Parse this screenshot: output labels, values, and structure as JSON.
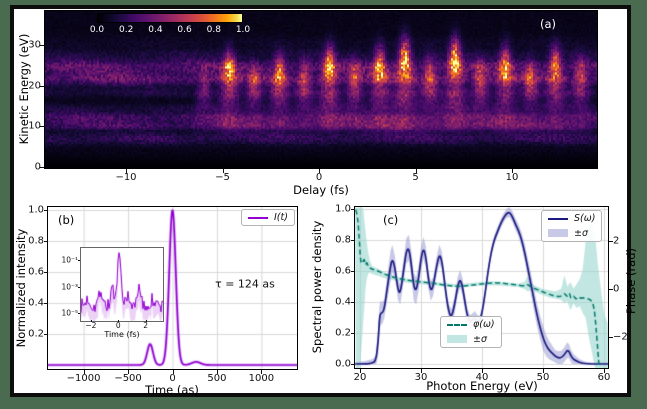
{
  "figure": {
    "border_color": "#4a6b4f",
    "frame_color": "#0d0d0d",
    "background": "#ffffff"
  },
  "colors": {
    "purple": "#9400d3",
    "purple_glow": "rgba(190,140,230,0.4)",
    "navy": "#1b1b80",
    "teal": "#00796b",
    "teal_band": "rgba(153,213,205,0.6)",
    "lavender_band": "rgba(155,155,212,0.55)",
    "grid": "#d8d8d8"
  },
  "chart_data": [
    {
      "type": "heatmap",
      "label": "(a)",
      "xlabel": "Delay (fs)",
      "ylabel": "Kinetic Energy (eV)",
      "x_ticks": [
        "−10",
        "−5",
        "0",
        "5",
        "10"
      ],
      "x_tick_values": [
        -10,
        -5,
        0,
        5,
        10
      ],
      "y_ticks": [
        "0",
        "10",
        "20",
        "30"
      ],
      "y_tick_values": [
        0,
        10,
        20,
        30
      ],
      "xlim": [
        -14.2,
        14.4
      ],
      "ylim": [
        0,
        38.4
      ],
      "colorbar": {
        "ticks": [
          "0.0",
          "0.2",
          "0.4",
          "0.6",
          "0.8",
          "1.0"
        ],
        "tick_values": [
          0.0,
          0.2,
          0.4,
          0.6,
          0.8,
          1.0
        ],
        "colormap": "inferno",
        "stops": [
          [
            0,
            "#000004"
          ],
          [
            0.13,
            "#160b39"
          ],
          [
            0.25,
            "#420a68"
          ],
          [
            0.38,
            "#6a176e"
          ],
          [
            0.5,
            "#932667"
          ],
          [
            0.62,
            "#bc3754"
          ],
          [
            0.73,
            "#dd513a"
          ],
          [
            0.82,
            "#f37819"
          ],
          [
            0.9,
            "#fca50a"
          ],
          [
            0.96,
            "#f6d746"
          ],
          [
            1,
            "#fcffa4"
          ]
        ]
      },
      "heatmap_model": {
        "stripes_ev": [
          [
            7,
            1.5,
            0.22
          ],
          [
            10.3,
            1.2,
            0.3
          ],
          [
            12.4,
            1.2,
            0.3
          ],
          [
            14.6,
            1.1,
            0.12
          ],
          [
            18.5,
            1.2,
            0.14
          ],
          [
            21.8,
            1.6,
            0.42
          ],
          [
            24.8,
            1.7,
            0.4
          ],
          [
            27.8,
            1.6,
            0.12
          ],
          [
            30.8,
            1.5,
            0.05
          ]
        ],
        "sidebands": [
          [
            -6.0,
            0.3,
            24
          ],
          [
            -4.7,
            0.8,
            29
          ],
          [
            -3.4,
            0.45,
            25
          ],
          [
            -2.1,
            0.7,
            28
          ],
          [
            -0.8,
            0.5,
            26
          ],
          [
            0.5,
            0.9,
            30
          ],
          [
            1.8,
            0.5,
            26
          ],
          [
            3.1,
            0.8,
            30
          ],
          [
            4.4,
            1.05,
            32
          ],
          [
            5.7,
            0.55,
            27
          ],
          [
            7.0,
            1.0,
            32
          ],
          [
            8.3,
            0.5,
            26
          ],
          [
            9.6,
            0.8,
            30
          ],
          [
            10.9,
            0.5,
            26
          ],
          [
            12.2,
            0.75,
            30
          ],
          [
            13.5,
            0.5,
            27
          ]
        ],
        "noise_seed": 42
      }
    },
    {
      "type": "line",
      "label": "(b)",
      "xlabel": "Time (as)",
      "ylabel": "Normalized intensity",
      "x_ticks": [
        "−1000",
        "−500",
        "0",
        "500",
        "1000"
      ],
      "x_tick_values": [
        -1000,
        -500,
        0,
        500,
        1000
      ],
      "y_ticks": [
        "0.2",
        "0.4",
        "0.6",
        "0.8",
        "1.0"
      ],
      "y_tick_values": [
        0.2,
        0.4,
        0.6,
        0.8,
        1.0
      ],
      "xlim": [
        -1400,
        1400
      ],
      "ylim": [
        0,
        1.0
      ],
      "legend_label": "I(t)",
      "annotation": "τ = 124 as",
      "curve_peaks": [
        {
          "t": 0,
          "amp": 1.0,
          "sig": 52
        },
        {
          "t": -252,
          "amp": 0.135,
          "sig": 46
        },
        {
          "t": 265,
          "amp": 0.02,
          "sig": 70
        }
      ],
      "inset": {
        "xlabel": "Time (fs)",
        "x_ticks": [
          "−2",
          "0",
          "2"
        ],
        "x_tick_values": [
          -2,
          0,
          2
        ],
        "y_ticks": [
          "10⁻¹",
          "10⁻³",
          "10⁻⁵"
        ],
        "y_tick_logs": [
          -1,
          -3,
          -5
        ],
        "xlim": [
          -2.8,
          3.2
        ],
        "ylim_log": [
          -5.5,
          0
        ],
        "noise_floor_log": -4.35,
        "noise_amp_log": 0.55,
        "peaks": [
          {
            "t": 0,
            "amp": 3.95,
            "sig": 0.17
          },
          {
            "t": -0.5,
            "amp": 1.5,
            "sig": 0.16
          },
          {
            "t": -1.35,
            "amp": 1.1,
            "sig": 0.22
          },
          {
            "t": 1.4,
            "amp": 1.3,
            "sig": 0.2
          },
          {
            "t": 0.55,
            "amp": 0.9,
            "sig": 0.14
          },
          {
            "t": -2.3,
            "amp": 0.5,
            "sig": 0.2
          },
          {
            "t": 2.4,
            "amp": 0.4,
            "sig": 0.2
          }
        ],
        "seed": 7
      }
    },
    {
      "type": "line",
      "label": "(c)",
      "xlabel": "Photon Energy (eV)",
      "ylabel": "Spectral power density",
      "ylabel_right": "Phase (rad)",
      "x_ticks": [
        "20",
        "30",
        "40",
        "50",
        "60"
      ],
      "x_tick_values": [
        20,
        30,
        40,
        50,
        60
      ],
      "y_ticks": [
        "0.0",
        "0.2",
        "0.4",
        "0.6",
        "0.8",
        "1.0"
      ],
      "y_tick_values": [
        0.0,
        0.2,
        0.4,
        0.6,
        0.8,
        1.0
      ],
      "right_ticks": [
        "2",
        "0",
        "−2"
      ],
      "right_tick_values": [
        2,
        0,
        -2
      ],
      "xlim": [
        19.2,
        60.7
      ],
      "ylim": [
        0,
        1.0
      ],
      "ylim_phase": [
        -3.3,
        3.4
      ],
      "legend1": {
        "line": "S(ω)",
        "band": "±σ"
      },
      "legend2": {
        "line": "φ(ω)",
        "band": "±σ"
      },
      "spectrum": [
        [
          19.2,
          0.0
        ],
        [
          21,
          0.0
        ],
        [
          22,
          0.005
        ],
        [
          22.6,
          0.02
        ],
        [
          23,
          0.15
        ],
        [
          23.2,
          0.3
        ],
        [
          23.4,
          0.33
        ],
        [
          23.7,
          0.33
        ],
        [
          24,
          0.36
        ],
        [
          24.5,
          0.5
        ],
        [
          25,
          0.63
        ],
        [
          25.3,
          0.68
        ],
        [
          25.7,
          0.63
        ],
        [
          26.2,
          0.48
        ],
        [
          26.6,
          0.45
        ],
        [
          27.2,
          0.62
        ],
        [
          27.6,
          0.73
        ],
        [
          28,
          0.75
        ],
        [
          28.4,
          0.65
        ],
        [
          28.8,
          0.5
        ],
        [
          29.2,
          0.47
        ],
        [
          29.6,
          0.55
        ],
        [
          30,
          0.68
        ],
        [
          30.4,
          0.75
        ],
        [
          30.8,
          0.69
        ],
        [
          31.2,
          0.55
        ],
        [
          31.6,
          0.47
        ],
        [
          32,
          0.5
        ],
        [
          32.5,
          0.62
        ],
        [
          33,
          0.71
        ],
        [
          33.4,
          0.67
        ],
        [
          33.8,
          0.55
        ],
        [
          34.2,
          0.42
        ],
        [
          34.6,
          0.33
        ],
        [
          35,
          0.3
        ],
        [
          35.5,
          0.38
        ],
        [
          36,
          0.5
        ],
        [
          36.4,
          0.55
        ],
        [
          36.8,
          0.5
        ],
        [
          37.2,
          0.4
        ],
        [
          37.6,
          0.31
        ],
        [
          38,
          0.27
        ],
        [
          38.4,
          0.28
        ],
        [
          38.8,
          0.3
        ],
        [
          39.2,
          0.28
        ],
        [
          39.6,
          0.27
        ],
        [
          40,
          0.33
        ],
        [
          40.5,
          0.45
        ],
        [
          41,
          0.6
        ],
        [
          41.5,
          0.72
        ],
        [
          42,
          0.8
        ],
        [
          42.5,
          0.85
        ],
        [
          43,
          0.9
        ],
        [
          43.5,
          0.94
        ],
        [
          44,
          0.97
        ],
        [
          44.5,
          0.98
        ],
        [
          45,
          0.95
        ],
        [
          45.5,
          0.9
        ],
        [
          46,
          0.86
        ],
        [
          46.5,
          0.8
        ],
        [
          47,
          0.72
        ],
        [
          47.5,
          0.62
        ],
        [
          48,
          0.52
        ],
        [
          48.5,
          0.42
        ],
        [
          49,
          0.32
        ],
        [
          49.5,
          0.24
        ],
        [
          50,
          0.17
        ],
        [
          50.5,
          0.12
        ],
        [
          51,
          0.09
        ],
        [
          51.5,
          0.07
        ],
        [
          52,
          0.05
        ],
        [
          52.5,
          0.04
        ],
        [
          53,
          0.04
        ],
        [
          53.5,
          0.06
        ],
        [
          54,
          0.09
        ],
        [
          54.3,
          0.08
        ],
        [
          54.6,
          0.05
        ],
        [
          55,
          0.03
        ],
        [
          55.5,
          0.02
        ],
        [
          56,
          0.01
        ],
        [
          57,
          0.0
        ],
        [
          60.7,
          0.0
        ]
      ],
      "spectrum_sigma": [
        [
          19.2,
          0.01
        ],
        [
          22.5,
          0.03
        ],
        [
          23,
          0.09
        ],
        [
          24,
          0.06
        ],
        [
          25,
          0.1
        ],
        [
          26,
          0.06
        ],
        [
          27.5,
          0.08
        ],
        [
          29,
          0.09
        ],
        [
          30.5,
          0.07
        ],
        [
          32,
          0.06
        ],
        [
          33,
          0.06
        ],
        [
          34.5,
          0.05
        ],
        [
          36,
          0.06
        ],
        [
          37.5,
          0.05
        ],
        [
          39,
          0.04
        ],
        [
          41,
          0.03
        ],
        [
          44,
          0.03
        ],
        [
          46,
          0.04
        ],
        [
          48,
          0.07
        ],
        [
          50,
          0.08
        ],
        [
          52,
          0.04
        ],
        [
          54,
          0.05
        ],
        [
          56,
          0.02
        ],
        [
          58,
          0.01
        ],
        [
          60.7,
          0.01
        ]
      ],
      "phase": [
        [
          19.3,
          3.3
        ],
        [
          19.6,
          3.1
        ],
        [
          19.9,
          2.0
        ],
        [
          20.1,
          1.1
        ],
        [
          20.4,
          1.05
        ],
        [
          20.7,
          1.3
        ],
        [
          20.9,
          0.95
        ],
        [
          21.1,
          1.15
        ],
        [
          21.4,
          0.9
        ],
        [
          21.8,
          0.85
        ],
        [
          22.3,
          0.8
        ],
        [
          23,
          0.74
        ],
        [
          24,
          0.62
        ],
        [
          25,
          0.53
        ],
        [
          26,
          0.45
        ],
        [
          27,
          0.4
        ],
        [
          28,
          0.36
        ],
        [
          29,
          0.33
        ],
        [
          30,
          0.3
        ],
        [
          31,
          0.27
        ],
        [
          32,
          0.24
        ],
        [
          33,
          0.2
        ],
        [
          34,
          0.16
        ],
        [
          35,
          0.13
        ],
        [
          36,
          0.11
        ],
        [
          37,
          0.12
        ],
        [
          38,
          0.15
        ],
        [
          39,
          0.18
        ],
        [
          40,
          0.21
        ],
        [
          41,
          0.24
        ],
        [
          42,
          0.26
        ],
        [
          43,
          0.25
        ],
        [
          44,
          0.22
        ],
        [
          45,
          0.19
        ],
        [
          46,
          0.16
        ],
        [
          47,
          0.12
        ],
        [
          47.5,
          0.2
        ],
        [
          48,
          0.08
        ],
        [
          49,
          -0.02
        ],
        [
          50,
          -0.12
        ],
        [
          51,
          -0.22
        ],
        [
          52,
          -0.3
        ],
        [
          53,
          -0.32
        ],
        [
          53.5,
          -0.15
        ],
        [
          54,
          -0.35
        ],
        [
          54.3,
          -0.1
        ],
        [
          54.6,
          -0.45
        ],
        [
          55,
          -0.25
        ],
        [
          55.4,
          -0.45
        ],
        [
          55.8,
          -0.3
        ],
        [
          56.2,
          -0.4
        ],
        [
          56.6,
          -0.35
        ],
        [
          57,
          -0.45
        ],
        [
          57.5,
          -0.4
        ],
        [
          58,
          -0.5
        ],
        [
          58.4,
          -0.8
        ],
        [
          58.7,
          -1.6
        ],
        [
          59,
          -2.6
        ],
        [
          59.2,
          -3.3
        ]
      ],
      "phase_sigma_band": [
        [
          19.3,
          -3.3,
          3.4
        ],
        [
          20,
          -3.3,
          3.4
        ],
        [
          20.5,
          -1.5,
          3.4
        ],
        [
          21,
          0.3,
          2.2
        ],
        [
          21.3,
          0.6,
          1.6
        ],
        [
          21.6,
          0.7,
          1.2
        ],
        [
          22,
          0.62,
          0.95
        ],
        [
          23,
          0.55,
          0.85
        ],
        [
          24,
          0.45,
          0.7
        ],
        [
          25,
          0.4,
          0.62
        ],
        [
          26,
          0.33,
          0.52
        ],
        [
          28,
          0.25,
          0.42
        ],
        [
          30,
          0.2,
          0.36
        ],
        [
          32,
          0.15,
          0.3
        ],
        [
          34,
          0.1,
          0.25
        ],
        [
          36,
          0.07,
          0.2
        ],
        [
          38,
          0.1,
          0.25
        ],
        [
          40,
          0.15,
          0.3
        ],
        [
          42,
          0.15,
          0.32
        ],
        [
          44,
          0.12,
          0.28
        ],
        [
          46,
          0.08,
          0.22
        ],
        [
          47,
          0.0,
          0.3
        ],
        [
          47.5,
          -0.1,
          0.55
        ],
        [
          48,
          -0.05,
          0.25
        ],
        [
          49,
          -0.15,
          0.1
        ],
        [
          50,
          -0.25,
          0.0
        ],
        [
          51,
          -0.35,
          -0.05
        ],
        [
          52,
          -0.4,
          -0.1
        ],
        [
          53,
          -0.45,
          0.0
        ],
        [
          53.5,
          -0.6,
          0.6
        ],
        [
          54,
          -0.5,
          0.1
        ],
        [
          54.5,
          -0.9,
          0.3
        ],
        [
          55,
          -0.6,
          0.0
        ],
        [
          55.5,
          -0.8,
          0.2
        ],
        [
          56,
          -0.7,
          0.4
        ],
        [
          56.5,
          -1.0,
          0.8
        ],
        [
          57,
          -1.2,
          2.0
        ],
        [
          57.5,
          -2.0,
          2.6
        ],
        [
          58,
          -2.6,
          2.9
        ],
        [
          58.5,
          -3.3,
          2.4
        ],
        [
          59,
          -3.4,
          1.0
        ],
        [
          59.5,
          -3.4,
          0.0
        ],
        [
          60,
          -3.4,
          -1.0
        ],
        [
          60.7,
          -3.4,
          -1.5
        ]
      ]
    }
  ]
}
